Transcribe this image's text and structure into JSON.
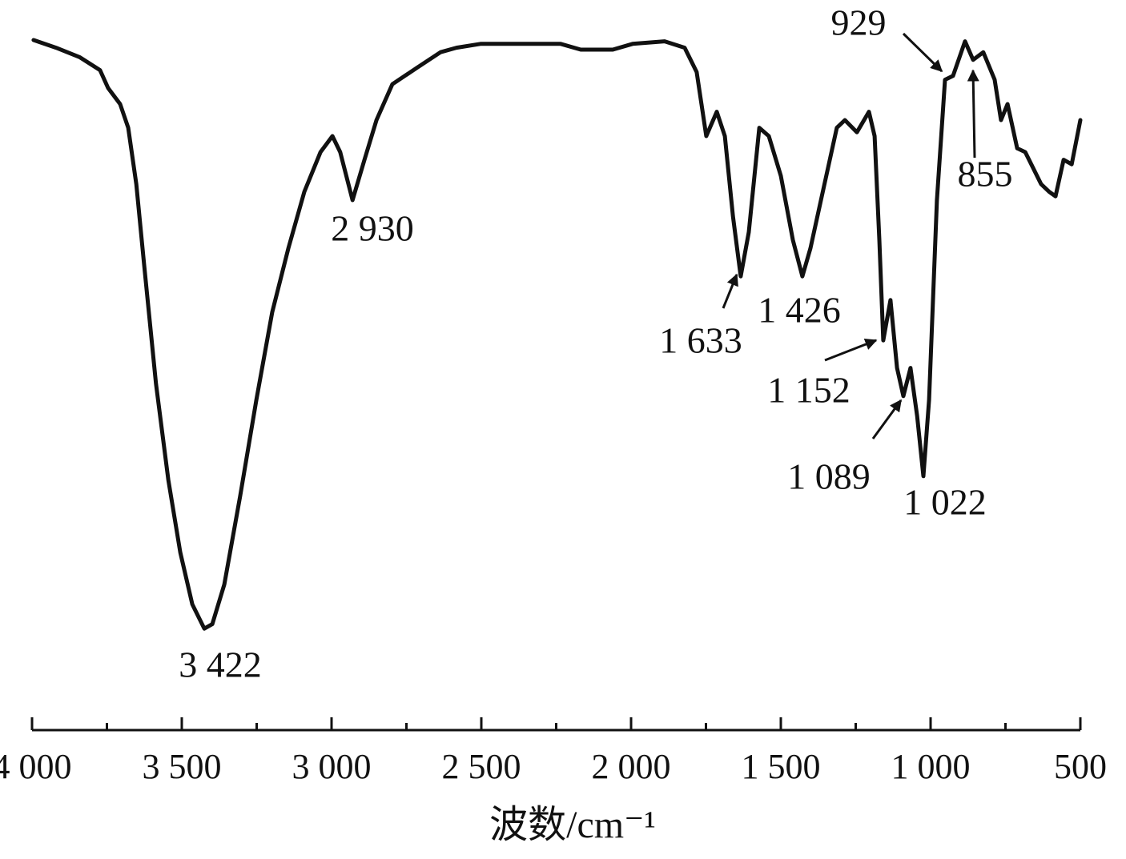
{
  "chart_data": {
    "type": "line",
    "x_label": "波数/cm⁻¹",
    "x": [
      3995,
      3920,
      3840,
      3773,
      3746,
      3706,
      3679,
      3652,
      3626,
      3586,
      3545,
      3505,
      3465,
      3425,
      3398,
      3358,
      3305,
      3251,
      3198,
      3144,
      3091,
      3037,
      2997,
      2971,
      2930,
      2890,
      2850,
      2797,
      2717,
      2636,
      2583,
      2503,
      2235,
      2168,
      2061,
      1995,
      1888,
      1821,
      1781,
      1749,
      1714,
      1687,
      1660,
      1634,
      1607,
      1572,
      1540,
      1500,
      1460,
      1428,
      1401,
      1366,
      1313,
      1286,
      1246,
      1206,
      1187,
      1171,
      1158,
      1134,
      1112,
      1091,
      1067,
      1045,
      1024,
      1005,
      979,
      952,
      925,
      885,
      858,
      824,
      786,
      765,
      743,
      711,
      684,
      631,
      604,
      583,
      556,
      529,
      500
    ],
    "series": [
      {
        "name": "spectrum",
        "color": "#111111",
        "values": [
          97.5,
          96.3,
          94.8,
          92.8,
          90,
          87.5,
          83.8,
          75,
          62.5,
          43.8,
          28.8,
          17.5,
          9.4,
          5.6,
          6.3,
          12.5,
          26.3,
          41.3,
          55,
          65,
          73.8,
          80,
          82.5,
          80,
          72.5,
          78.8,
          85,
          90.6,
          93.1,
          95.6,
          96.3,
          96.9,
          96.9,
          96,
          96,
          96.9,
          97.3,
          96.3,
          92.5,
          82.5,
          86.3,
          82.5,
          70,
          60.6,
          67.5,
          83.8,
          82.5,
          76.3,
          66.3,
          60.6,
          65,
          72.5,
          83.8,
          85,
          83.1,
          86.3,
          82.5,
          66.3,
          50.6,
          56.9,
          46.3,
          41.9,
          46.3,
          38.8,
          29.4,
          41.3,
          72.5,
          91.3,
          91.9,
          97.3,
          94.4,
          95.6,
          91.3,
          85,
          87.5,
          80.6,
          80,
          75,
          73.8,
          73.1,
          78.8,
          78.1,
          85
        ]
      }
    ],
    "xlim": [
      4000,
      500
    ],
    "ylim": [
      0,
      100
    ],
    "xticks": [
      {
        "value": 4000,
        "label": "4 000"
      },
      {
        "value": 3500,
        "label": "3 500"
      },
      {
        "value": 3000,
        "label": "3 000"
      },
      {
        "value": 2500,
        "label": "2 500"
      },
      {
        "value": 2000,
        "label": "2 000"
      },
      {
        "value": 1500,
        "label": "1 500"
      },
      {
        "value": 1000,
        "label": "1 000"
      },
      500
    ],
    "xminor_ticks": [
      3750,
      3250,
      2750,
      2250,
      1750,
      1250,
      750
    ],
    "annotations": [
      "3 422",
      "2 930",
      "1 633",
      "1 426",
      "1 152",
      "1 089",
      "1 022",
      "929",
      "855"
    ]
  }
}
